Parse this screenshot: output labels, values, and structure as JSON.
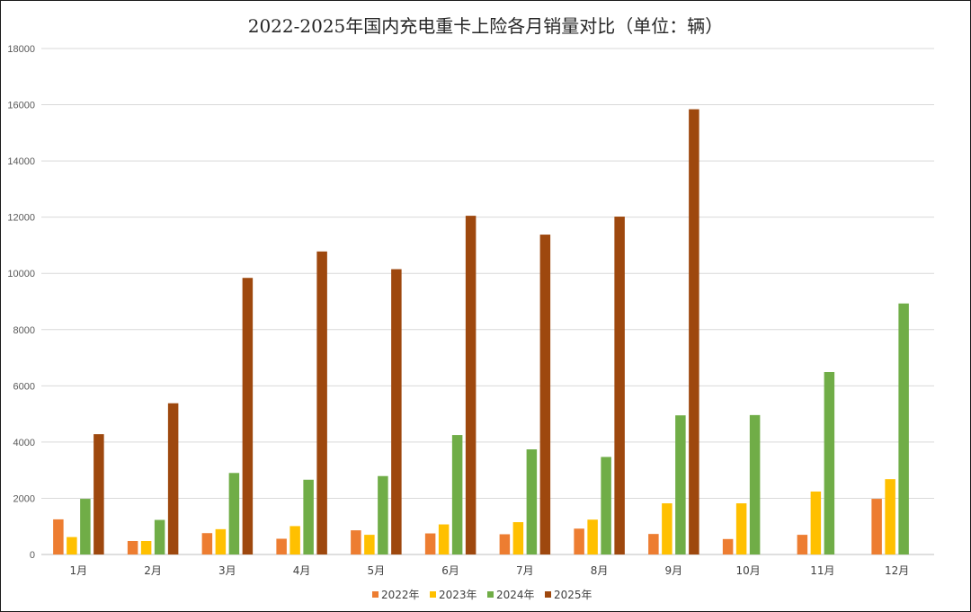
{
  "chart_data": {
    "type": "bar",
    "title": "2022-2025年国内充电重卡上险各月销量对比（单位：辆）",
    "xlabel": "",
    "ylabel": "",
    "ylim": [
      0,
      18000
    ],
    "yticks": [
      0,
      2000,
      4000,
      6000,
      8000,
      10000,
      12000,
      14000,
      16000,
      18000
    ],
    "grid": true,
    "legend_position": "bottom",
    "categories": [
      "1月",
      "2月",
      "3月",
      "4月",
      "5月",
      "6月",
      "7月",
      "8月",
      "9月",
      "10月",
      "11月",
      "12月"
    ],
    "series": [
      {
        "name": "2022年",
        "color": "#ED7D31",
        "values": [
          1250,
          480,
          760,
          560,
          860,
          750,
          720,
          920,
          730,
          550,
          700,
          1980
        ]
      },
      {
        "name": "2023年",
        "color": "#FFC000",
        "values": [
          620,
          480,
          900,
          1010,
          700,
          1070,
          1150,
          1240,
          1820,
          1820,
          2240,
          2680
        ]
      },
      {
        "name": "2024年",
        "color": "#70AD47",
        "values": [
          1980,
          1230,
          2900,
          2660,
          2790,
          4250,
          3740,
          3470,
          4950,
          4960,
          6490,
          8930
        ]
      },
      {
        "name": "2025年",
        "color": "#9E480E",
        "values": [
          4280,
          5380,
          9840,
          10780,
          10150,
          12050,
          11380,
          12020,
          15840,
          null,
          null,
          null
        ]
      }
    ]
  }
}
